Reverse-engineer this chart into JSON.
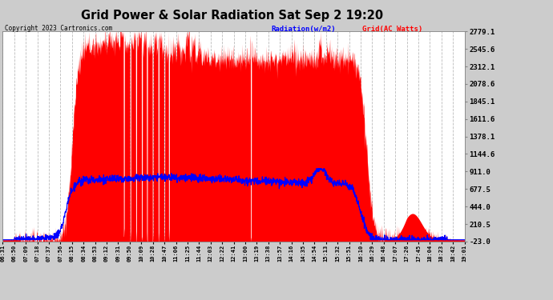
{
  "title": "Grid Power & Solar Radiation Sat Sep 2 19:20",
  "copyright": "Copyright 2023 Cartronics.com",
  "legend_radiation": "Radiation(w/m2)",
  "legend_grid": "Grid(AC Watts)",
  "ylabel_right_values": [
    2779.1,
    2545.6,
    2312.1,
    2078.6,
    1845.1,
    1611.6,
    1378.1,
    1144.6,
    911.0,
    677.5,
    444.0,
    210.5,
    -23.0
  ],
  "ymin": -23.0,
  "ymax": 2779.1,
  "x_labels": [
    "06:31",
    "06:50",
    "07:09",
    "07:18",
    "07:37",
    "07:56",
    "08:15",
    "08:34",
    "08:53",
    "09:12",
    "09:31",
    "09:50",
    "10:09",
    "10:28",
    "10:47",
    "11:06",
    "11:25",
    "11:44",
    "12:03",
    "12:22",
    "12:41",
    "13:00",
    "13:19",
    "13:38",
    "13:57",
    "14:16",
    "14:35",
    "14:54",
    "15:13",
    "15:32",
    "15:51",
    "16:10",
    "16:29",
    "16:48",
    "17:07",
    "17:26",
    "17:45",
    "18:04",
    "18:23",
    "18:42",
    "19:01"
  ],
  "bg_color": "#cccccc",
  "plot_bg_color": "#ffffff",
  "grid_color": "#bbbbbb",
  "radiation_color": "#0000ff",
  "solar_fill_color": "#ff0000",
  "title_color": "#000000",
  "copyright_color": "#000000",
  "legend_radiation_color": "#0000ff",
  "legend_grid_color": "#ff0000"
}
